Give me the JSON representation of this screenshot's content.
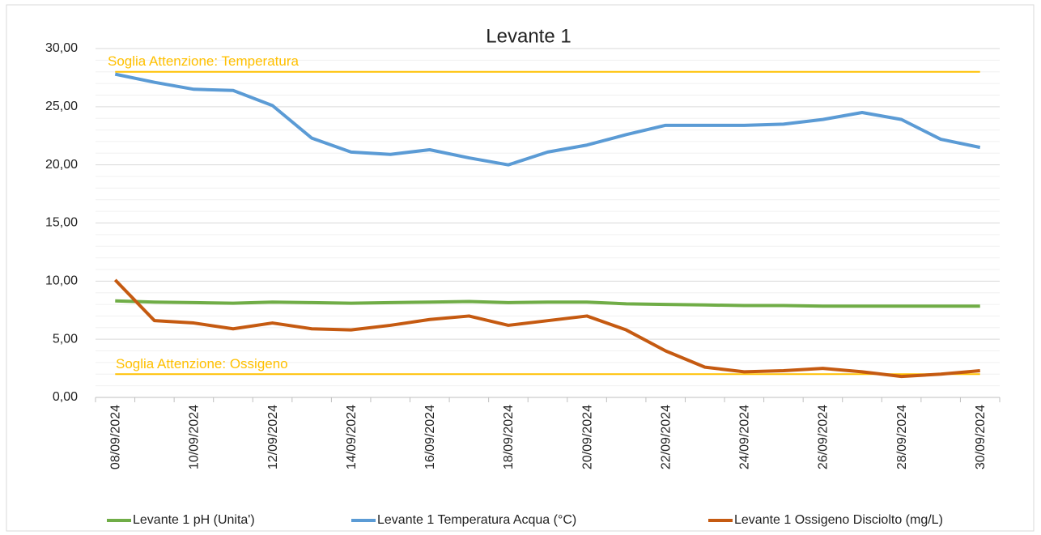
{
  "chart_data": {
    "type": "line",
    "title": "Levante 1",
    "categories": [
      "08/09/2024",
      null,
      "10/09/2024",
      null,
      "12/09/2024",
      null,
      "14/09/2024",
      null,
      "16/09/2024",
      null,
      "18/09/2024",
      null,
      "20/09/2024",
      null,
      "22/09/2024",
      null,
      "24/09/2024",
      null,
      "26/09/2024",
      null,
      "28/09/2024",
      null,
      "30/09/2024"
    ],
    "series": [
      {
        "name": "Levante 1 pH (Unita')",
        "color": "#70ad47",
        "values": [
          8.3,
          8.2,
          8.15,
          8.1,
          8.2,
          8.15,
          8.1,
          8.15,
          8.2,
          8.25,
          8.15,
          8.2,
          8.2,
          8.05,
          8.0,
          7.95,
          7.9,
          7.9,
          7.85,
          7.85,
          7.85,
          7.85,
          7.85
        ]
      },
      {
        "name": "Levante 1 Temperatura Acqua (°C)",
        "color": "#5b9bd5",
        "values": [
          27.8,
          27.1,
          26.5,
          26.4,
          25.1,
          22.3,
          21.1,
          20.9,
          21.3,
          20.6,
          20.0,
          21.1,
          21.7,
          22.6,
          23.4,
          23.4,
          23.4,
          23.5,
          23.9,
          24.5,
          23.9,
          22.2,
          21.5
        ]
      },
      {
        "name": "Levante 1 Ossigeno Disciolto (mg/L)",
        "color": "#c55a11",
        "values": [
          10.1,
          6.6,
          6.4,
          5.9,
          6.4,
          5.9,
          5.8,
          6.2,
          6.7,
          7.0,
          6.2,
          6.6,
          7.0,
          5.8,
          4.0,
          2.6,
          2.2,
          2.3,
          2.5,
          2.2,
          1.8,
          2.0,
          2.3
        ]
      }
    ],
    "thresholds": [
      {
        "value": 28,
        "label": "Soglia Attenzione: Temperatura",
        "color": "#ffc000"
      },
      {
        "value": 2,
        "label": "Soglia Attenzione: Ossigeno",
        "color": "#ffc000"
      }
    ],
    "ylim": [
      0,
      30
    ],
    "yticks": [
      {
        "value": 0,
        "label": "0,00"
      },
      {
        "value": 5,
        "label": "5,00"
      },
      {
        "value": 10,
        "label": "10,00"
      },
      {
        "value": 15,
        "label": "15,00"
      },
      {
        "value": 20,
        "label": "20,00"
      },
      {
        "value": 25,
        "label": "25,00"
      },
      {
        "value": 30,
        "label": "30,00"
      }
    ],
    "grid": true,
    "legend": "bottom"
  }
}
